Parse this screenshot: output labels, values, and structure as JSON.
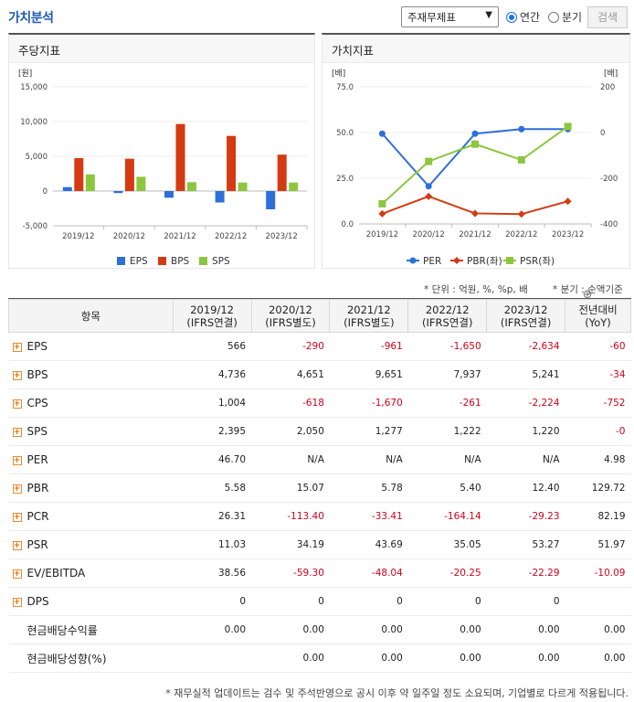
{
  "header": {
    "title": "가치분석",
    "select_value": "주재무제표",
    "radio_annual": "연간",
    "radio_quarter": "분기",
    "search_button": "검색"
  },
  "left_panel_title": "주당지표",
  "right_panel_title": "가치지표",
  "left_chart_unit": "[원]",
  "right_chart_unit_left": "[배]",
  "right_chart_unit_right": "[배]",
  "chart_data": [
    {
      "type": "bar",
      "categories": [
        "2019/12",
        "2020/12",
        "2021/12",
        "2022/12",
        "2023/12"
      ],
      "ylim": [
        -5000,
        15000
      ],
      "yticks": [
        "15,000",
        "10,000",
        "5,000",
        "0",
        "-5,000"
      ],
      "ytick_values": [
        15000,
        10000,
        5000,
        0,
        -5000
      ],
      "series": [
        {
          "name": "EPS",
          "color": "#2d6fd8",
          "values": [
            566,
            -290,
            -961,
            -1650,
            -2634
          ]
        },
        {
          "name": "BPS",
          "color": "#d43b12",
          "values": [
            4736,
            4651,
            9651,
            7937,
            5241
          ]
        },
        {
          "name": "SPS",
          "color": "#8cc63e",
          "values": [
            2395,
            2050,
            1277,
            1222,
            1220
          ]
        }
      ]
    },
    {
      "type": "line",
      "categories": [
        "2019/12",
        "2020/12",
        "2021/12",
        "2022/12",
        "2023/12"
      ],
      "ylim_left": [
        0,
        75
      ],
      "yticks_left": [
        "75.0",
        "50.0",
        "25.0",
        "0.0"
      ],
      "ytick_values_left": [
        75,
        50,
        25,
        0
      ],
      "ylim_right": [
        -400,
        200
      ],
      "yticks_right": [
        "200",
        "0",
        "-200",
        "-400"
      ],
      "ytick_values_right": [
        200,
        0,
        -200,
        -400
      ],
      "series": [
        {
          "name": "PER",
          "legend": "PER",
          "color": "#2d6fd8",
          "axis": "right",
          "values": [
            46.7,
            null,
            null,
            null,
            null
          ],
          "plotted": [
            46.7,
            -240,
            12,
            12,
            12
          ]
        },
        {
          "name": "PBR",
          "legend": "PBR(좌)",
          "color": "#d43b12",
          "axis": "left",
          "values": [
            5.58,
            15.07,
            5.78,
            5.4,
            12.4
          ]
        },
        {
          "name": "PSR",
          "legend": "PSR(좌)",
          "color": "#8cc63e",
          "axis": "left",
          "values": [
            11.03,
            34.19,
            43.69,
            35.05,
            53.27
          ]
        }
      ]
    }
  ],
  "unit_note": "* 단위 : 억원, %, %p, 배",
  "quarter_note": "* 분기 : 순액기준",
  "table": {
    "header_item": "항목",
    "columns": [
      {
        "year": "2019/12",
        "basis": "(IFRS연결)"
      },
      {
        "year": "2020/12",
        "basis": "(IFRS별도)"
      },
      {
        "year": "2021/12",
        "basis": "(IFRS별도)"
      },
      {
        "year": "2022/12",
        "basis": "(IFRS연결)"
      },
      {
        "year": "2023/12",
        "basis": "(IFRS연결)"
      }
    ],
    "yoy_header": "전년대비",
    "yoy_sub": "(YoY)",
    "rows": [
      {
        "label": "EPS",
        "expand": true,
        "cells": [
          "566",
          "-290",
          "-961",
          "-1,650",
          "-2,634"
        ],
        "yoy": "-60"
      },
      {
        "label": "BPS",
        "expand": true,
        "cells": [
          "4,736",
          "4,651",
          "9,651",
          "7,937",
          "5,241"
        ],
        "yoy": "-34"
      },
      {
        "label": "CPS",
        "expand": true,
        "cells": [
          "1,004",
          "-618",
          "-1,670",
          "-261",
          "-2,224"
        ],
        "yoy": "-752"
      },
      {
        "label": "SPS",
        "expand": true,
        "cells": [
          "2,395",
          "2,050",
          "1,277",
          "1,222",
          "1,220"
        ],
        "yoy": "-0"
      },
      {
        "label": "PER",
        "expand": true,
        "cells": [
          "46.70",
          "N/A",
          "N/A",
          "N/A",
          "N/A"
        ],
        "yoy": "4.98"
      },
      {
        "label": "PBR",
        "expand": true,
        "cells": [
          "5.58",
          "15.07",
          "5.78",
          "5.40",
          "12.40"
        ],
        "yoy": "129.72"
      },
      {
        "label": "PCR",
        "expand": true,
        "cells": [
          "26.31",
          "-113.40",
          "-33.41",
          "-164.14",
          "-29.23"
        ],
        "yoy": "82.19"
      },
      {
        "label": "PSR",
        "expand": true,
        "cells": [
          "11.03",
          "34.19",
          "43.69",
          "35.05",
          "53.27"
        ],
        "yoy": "51.97"
      },
      {
        "label": "EV/EBITDA",
        "expand": true,
        "cells": [
          "38.56",
          "-59.30",
          "-48.04",
          "-20.25",
          "-22.29"
        ],
        "yoy": "-10.09"
      },
      {
        "label": "DPS",
        "expand": true,
        "cells": [
          "0",
          "0",
          "0",
          "0",
          "0"
        ],
        "yoy": ""
      },
      {
        "label": "현금배당수익률",
        "expand": false,
        "cells": [
          "0.00",
          "0.00",
          "0.00",
          "0.00",
          "0.00"
        ],
        "yoy": "0.00"
      },
      {
        "label": "현금배당성향(%)",
        "expand": false,
        "cells": [
          "",
          "0.00",
          "0.00",
          "0.00",
          "0.00"
        ],
        "yoy": "0.00"
      }
    ]
  },
  "footnote": "* 재무실적 업데이트는 검수 및 주석반영으로 공시 이후 약 일주일 정도 소요되며, 기업별로 다르게 적용됩니다."
}
